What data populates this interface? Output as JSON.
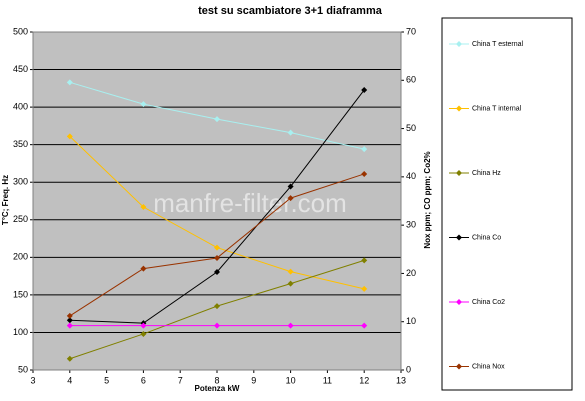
{
  "chart_data": {
    "type": "line",
    "title": "test su scambiatore 3+1  diaframma",
    "x_label": "Potenza kW",
    "y_label": "T°C; Freq. Hz",
    "y2_label": "Nox ppm; CO ppm; Co2%",
    "watermark": "manfre-filter.com",
    "x": [
      4,
      6,
      8,
      10,
      12
    ],
    "xlim": [
      3,
      13
    ],
    "xticks": [
      3,
      4,
      5,
      6,
      7,
      8,
      9,
      10,
      11,
      12,
      13
    ],
    "ylim": [
      50,
      500
    ],
    "yticks": [
      50,
      100,
      150,
      200,
      250,
      300,
      350,
      400,
      450,
      500
    ],
    "y2lim": [
      0,
      70
    ],
    "y2ticks": [
      0,
      10,
      20,
      30,
      40,
      50,
      60,
      70
    ],
    "grid": true,
    "legend": "right",
    "series": [
      {
        "name": "China T esternal",
        "color": "#a8f0f0",
        "values": [
          433,
          404,
          384,
          366,
          344
        ]
      },
      {
        "name": "China T internal",
        "color": "#ffc000",
        "values": [
          361,
          267,
          213,
          181,
          158
        ]
      },
      {
        "name": "China Hz",
        "color": "#808000",
        "values": [
          65,
          98,
          135,
          165,
          196
        ]
      },
      {
        "name": "China Co",
        "color": "#000000",
        "axis": "y2",
        "values": [
          10.3,
          9.7,
          20.3,
          38,
          58
        ]
      },
      {
        "name": "China Co2",
        "color": "#ff00ff",
        "axis": "y2",
        "values": [
          9.2,
          9.2,
          9.2,
          9.2,
          9.2
        ]
      },
      {
        "name": "China Nox",
        "color": "#993300",
        "axis": "y2",
        "values": [
          11.2,
          21,
          23.2,
          35.6,
          40.6
        ]
      }
    ]
  }
}
